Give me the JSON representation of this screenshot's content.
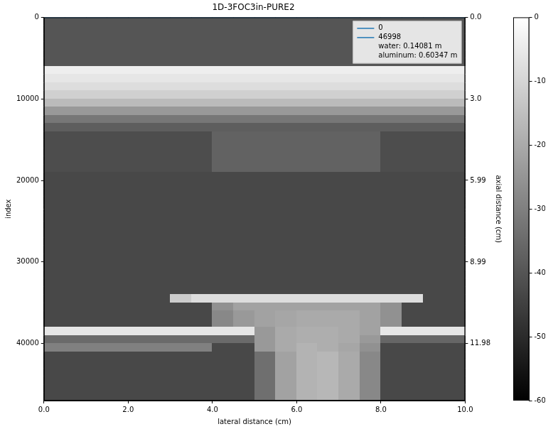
{
  "chart_data": {
    "type": "heatmap",
    "title": "1D-3FOC3in-PURE2",
    "x_label": "lateral distance (cm)",
    "y_label": "index",
    "y2_label": "axial distance (cm)",
    "xlim": [
      0,
      10
    ],
    "xticks": [
      {
        "value": 0,
        "label": "0.0"
      },
      {
        "value": 2,
        "label": "2.0"
      },
      {
        "value": 4,
        "label": "4.0"
      },
      {
        "value": 6,
        "label": "6.0"
      },
      {
        "value": 8,
        "label": "8.0"
      },
      {
        "value": 10,
        "label": "10.0"
      }
    ],
    "ylim": [
      47000,
      0
    ],
    "yticks": [
      0,
      10000,
      20000,
      30000,
      40000
    ],
    "y2lim": [
      14.081,
      0
    ],
    "y2ticks": [
      {
        "value": 0,
        "label": "0.0"
      },
      {
        "value": 2.996,
        "label": "3.0"
      },
      5.99,
      8.99,
      11.98
    ],
    "grid": false,
    "legend": "upper right",
    "series": [
      {
        "name": "0",
        "color": "#1f77b4",
        "x": [
          0,
          10
        ],
        "values": [
          0,
          0
        ]
      },
      {
        "name": "46998",
        "color": "#1f77b4",
        "x": [
          0,
          10
        ],
        "values": [
          46998,
          46998
        ]
      }
    ],
    "annotations": [
      "water: 0.14081 m",
      "aluminum: 0.60347 m"
    ],
    "color": "gray",
    "colorbar": {
      "range": [
        -60,
        0
      ],
      "ticks": [
        -60,
        -50,
        -40,
        -30,
        -20,
        -10,
        0
      ]
    },
    "cells": [
      [
        -40,
        -40,
        -40,
        -40,
        -40,
        -40,
        -40,
        -40,
        -40,
        -40,
        -40,
        -40,
        -40,
        -40,
        -40,
        -40,
        -40,
        -40,
        -40,
        -40
      ],
      [
        -40,
        -40,
        -40,
        -40,
        -40,
        -40,
        -40,
        -40,
        -40,
        -40,
        -40,
        -40,
        -40,
        -40,
        -40,
        -40,
        -40,
        -40,
        -40,
        -40
      ],
      [
        -40,
        -40,
        -40,
        -40,
        -40,
        -40,
        -40,
        -40,
        -40,
        -40,
        -40,
        -40,
        -40,
        -40,
        -40,
        -40,
        -40,
        -40,
        -40,
        -40
      ],
      [
        -40,
        -40,
        -40,
        -40,
        -40,
        -40,
        -40,
        -40,
        -40,
        -40,
        -40,
        -40,
        -40,
        -40,
        -40,
        -40,
        -40,
        -40,
        -40,
        -40
      ],
      [
        -40,
        -40,
        -40,
        -40,
        -40,
        -40,
        -40,
        -40,
        -40,
        -40,
        -40,
        -40,
        -40,
        -40,
        -40,
        -40,
        -40,
        -40,
        -40,
        -40
      ],
      [
        -40,
        -40,
        -40,
        -40,
        -40,
        -40,
        -40,
        -40,
        -40,
        -40,
        -40,
        -40,
        -40,
        -40,
        -40,
        -40,
        -40,
        -40,
        -40,
        -40
      ],
      [
        -4,
        -4,
        -4,
        -4,
        -4,
        -4,
        -4,
        -4,
        -4,
        -4,
        -4,
        -4,
        -4,
        -4,
        -4,
        -4,
        -4,
        -4,
        -4,
        -4
      ],
      [
        -6,
        -6,
        -6,
        -6,
        -6,
        -6,
        -6,
        -6,
        -6,
        -6,
        -6,
        -6,
        -6,
        -6,
        -6,
        -6,
        -6,
        -6,
        -6,
        -6
      ],
      [
        -8,
        -8,
        -8,
        -8,
        -8,
        -8,
        -8,
        -8,
        -8,
        -8,
        -8,
        -8,
        -8,
        -8,
        -8,
        -8,
        -8,
        -8,
        -8,
        -8
      ],
      [
        -11,
        -11,
        -11,
        -11,
        -11,
        -11,
        -11,
        -11,
        -11,
        -11,
        -11,
        -11,
        -11,
        -11,
        -11,
        -11,
        -11,
        -11,
        -11,
        -11
      ],
      [
        -16,
        -16,
        -16,
        -16,
        -16,
        -16,
        -16,
        -16,
        -16,
        -16,
        -16,
        -16,
        -16,
        -16,
        -16,
        -16,
        -16,
        -16,
        -16,
        -16
      ],
      [
        -24,
        -24,
        -24,
        -24,
        -24,
        -24,
        -24,
        -24,
        -24,
        -24,
        -24,
        -24,
        -24,
        -24,
        -24,
        -24,
        -24,
        -24,
        -24,
        -24
      ],
      [
        -32,
        -32,
        -32,
        -32,
        -32,
        -32,
        -32,
        -32,
        -32,
        -32,
        -32,
        -32,
        -32,
        -32,
        -32,
        -32,
        -32,
        -32,
        -32,
        -32
      ],
      [
        -38,
        -38,
        -38,
        -38,
        -38,
        -38,
        -38,
        -38,
        -38,
        -38,
        -38,
        -38,
        -38,
        -38,
        -38,
        -38,
        -38,
        -38,
        -38,
        -38
      ],
      [
        -42,
        -42,
        -42,
        -42,
        -42,
        -42,
        -42,
        -42,
        -37,
        -37,
        -37,
        -37,
        -37,
        -37,
        -37,
        -37,
        -42,
        -42,
        -42,
        -42
      ],
      [
        -42,
        -42,
        -42,
        -42,
        -42,
        -42,
        -42,
        -42,
        -37,
        -37,
        -37,
        -37,
        -37,
        -37,
        -37,
        -37,
        -42,
        -42,
        -42,
        -42
      ],
      [
        -42,
        -42,
        -42,
        -42,
        -42,
        -42,
        -42,
        -42,
        -37,
        -37,
        -37,
        -37,
        -37,
        -37,
        -37,
        -37,
        -42,
        -42,
        -42,
        -42
      ],
      [
        -42,
        -42,
        -42,
        -42,
        -42,
        -42,
        -42,
        -42,
        -37,
        -37,
        -37,
        -37,
        -37,
        -37,
        -37,
        -37,
        -42,
        -42,
        -42,
        -42
      ],
      [
        -42,
        -42,
        -42,
        -42,
        -42,
        -42,
        -42,
        -42,
        -37,
        -37,
        -37,
        -37,
        -37,
        -37,
        -37,
        -37,
        -42,
        -42,
        -42,
        -42
      ],
      [
        -43,
        -43,
        -43,
        -43,
        -43,
        -43,
        -43,
        -43,
        -43,
        -43,
        -43,
        -43,
        -43,
        -43,
        -43,
        -43,
        -43,
        -43,
        -43,
        -43
      ],
      [
        -43,
        -43,
        -43,
        -43,
        -43,
        -43,
        -43,
        -43,
        -43,
        -43,
        -43,
        -43,
        -43,
        -43,
        -43,
        -43,
        -43,
        -43,
        -43,
        -43
      ],
      [
        -43,
        -43,
        -43,
        -43,
        -43,
        -43,
        -43,
        -43,
        -43,
        -43,
        -43,
        -43,
        -43,
        -43,
        -43,
        -43,
        -43,
        -43,
        -43,
        -43
      ],
      [
        -43,
        -43,
        -43,
        -43,
        -43,
        -43,
        -43,
        -43,
        -43,
        -43,
        -43,
        -43,
        -43,
        -43,
        -43,
        -43,
        -43,
        -43,
        -43,
        -43
      ],
      [
        -43,
        -43,
        -43,
        -43,
        -43,
        -43,
        -43,
        -43,
        -43,
        -43,
        -43,
        -43,
        -43,
        -43,
        -43,
        -43,
        -43,
        -43,
        -43,
        -43
      ],
      [
        -43,
        -43,
        -43,
        -43,
        -43,
        -43,
        -43,
        -43,
        -43,
        -43,
        -43,
        -43,
        -43,
        -43,
        -43,
        -43,
        -43,
        -43,
        -43,
        -43
      ],
      [
        -43,
        -43,
        -43,
        -43,
        -43,
        -43,
        -43,
        -43,
        -43,
        -43,
        -43,
        -43,
        -43,
        -43,
        -43,
        -43,
        -43,
        -43,
        -43,
        -43
      ],
      [
        -43,
        -43,
        -43,
        -43,
        -43,
        -43,
        -43,
        -43,
        -43,
        -43,
        -43,
        -43,
        -43,
        -43,
        -43,
        -43,
        -43,
        -43,
        -43,
        -43
      ],
      [
        -43,
        -43,
        -43,
        -43,
        -43,
        -43,
        -43,
        -43,
        -43,
        -43,
        -43,
        -43,
        -43,
        -43,
        -43,
        -43,
        -43,
        -43,
        -43,
        -43
      ],
      [
        -43,
        -43,
        -43,
        -43,
        -43,
        -43,
        -43,
        -43,
        -43,
        -43,
        -43,
        -43,
        -43,
        -43,
        -43,
        -43,
        -43,
        -43,
        -43,
        -43
      ],
      [
        -43,
        -43,
        -43,
        -43,
        -43,
        -43,
        -43,
        -43,
        -43,
        -43,
        -43,
        -43,
        -43,
        -43,
        -43,
        -43,
        -43,
        -43,
        -43,
        -43
      ],
      [
        -43,
        -43,
        -43,
        -43,
        -43,
        -43,
        -43,
        -43,
        -43,
        -43,
        -43,
        -43,
        -43,
        -43,
        -43,
        -43,
        -43,
        -43,
        -43,
        -43
      ],
      [
        -43,
        -43,
        -43,
        -43,
        -43,
        -43,
        -43,
        -43,
        -43,
        -43,
        -43,
        -43,
        -43,
        -43,
        -43,
        -43,
        -43,
        -43,
        -43,
        -43
      ],
      [
        -43,
        -43,
        -43,
        -43,
        -43,
        -43,
        -43,
        -43,
        -43,
        -43,
        -43,
        -43,
        -43,
        -43,
        -43,
        -43,
        -43,
        -43,
        -43,
        -43
      ],
      [
        -43,
        -43,
        -43,
        -43,
        -43,
        -43,
        -43,
        -43,
        -43,
        -43,
        -43,
        -43,
        -43,
        -43,
        -43,
        -43,
        -43,
        -43,
        -43,
        -43
      ],
      [
        -43,
        -43,
        -43,
        -43,
        -43,
        -43,
        -12,
        -8,
        -8,
        -8,
        -8,
        -8,
        -8,
        -8,
        -8,
        -8,
        -8,
        -8,
        -43,
        -43
      ],
      [
        -43,
        -43,
        -43,
        -43,
        -43,
        -43,
        -43,
        -43,
        -26,
        -22,
        -22,
        -22,
        -22,
        -22,
        -22,
        -22,
        -26,
        -43,
        -43,
        -43
      ],
      [
        -43,
        -43,
        -43,
        -43,
        -43,
        -43,
        -43,
        -43,
        -28,
        -24,
        -22,
        -21,
        -20,
        -20,
        -20,
        -22,
        -26,
        -43,
        -43,
        -43
      ],
      [
        -43,
        -43,
        -43,
        -43,
        -43,
        -43,
        -43,
        -43,
        -28,
        -24,
        -22,
        -21,
        -20,
        -20,
        -20,
        -22,
        -26,
        -43,
        -43,
        -43
      ],
      [
        -6,
        -6,
        -6,
        -6,
        -6,
        -6,
        -6,
        -6,
        -6,
        -6,
        -24,
        -20,
        -19,
        -19,
        -20,
        -22,
        -6,
        -6,
        -6,
        -6
      ],
      [
        -35,
        -35,
        -35,
        -35,
        -35,
        -35,
        -35,
        -35,
        -35,
        -35,
        -24,
        -20,
        -19,
        -19,
        -20,
        -24,
        -36,
        -36,
        -36,
        -36
      ],
      [
        -30,
        -30,
        -30,
        -30,
        -30,
        -30,
        -30,
        -30,
        -43,
        -43,
        -24,
        -20,
        -18,
        -19,
        -21,
        -26,
        -43,
        -43,
        -43,
        -43
      ],
      [
        -43,
        -43,
        -43,
        -43,
        -43,
        -43,
        -43,
        -43,
        -43,
        -43,
        -34,
        -22,
        -18,
        -17,
        -20,
        -28,
        -43,
        -43,
        -43,
        -43
      ],
      [
        -43,
        -43,
        -43,
        -43,
        -43,
        -43,
        -43,
        -43,
        -43,
        -43,
        -34,
        -22,
        -18,
        -17,
        -20,
        -28,
        -43,
        -43,
        -43,
        -43
      ],
      [
        -43,
        -43,
        -43,
        -43,
        -43,
        -43,
        -43,
        -43,
        -43,
        -43,
        -34,
        -22,
        -18,
        -17,
        -20,
        -28,
        -43,
        -43,
        -43,
        -43
      ],
      [
        -43,
        -43,
        -43,
        -43,
        -43,
        -43,
        -43,
        -43,
        -43,
        -43,
        -34,
        -22,
        -18,
        -17,
        -20,
        -28,
        -43,
        -43,
        -43,
        -43
      ],
      [
        -43,
        -43,
        -43,
        -43,
        -43,
        -43,
        -43,
        -43,
        -43,
        -43,
        -34,
        -22,
        -18,
        -17,
        -20,
        -28,
        -43,
        -43,
        -43,
        -43
      ],
      [
        -43,
        -43,
        -43,
        -43,
        -43,
        -43,
        -43,
        -43,
        -43,
        -43,
        -34,
        -22,
        -18,
        -17,
        -20,
        -28,
        -43,
        -43,
        -43,
        -43
      ]
    ]
  }
}
